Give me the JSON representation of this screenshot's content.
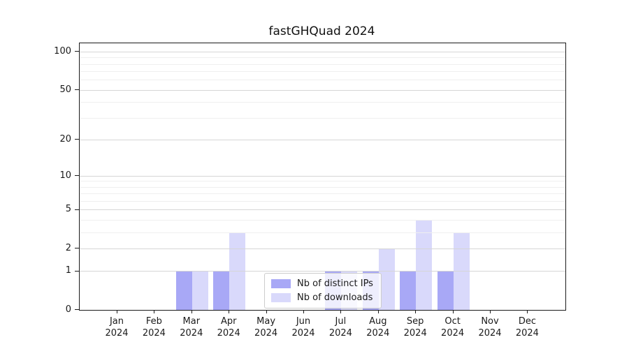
{
  "chart_data": {
    "type": "bar",
    "title": "fastGHQuad 2024",
    "categories": [
      "Jan",
      "Feb",
      "Mar",
      "Apr",
      "May",
      "Jun",
      "Jul",
      "Aug",
      "Sep",
      "Oct",
      "Nov",
      "Dec"
    ],
    "x_tick_second_line": "2024",
    "series": [
      {
        "name": "Nb of distinct IPs",
        "color": "rgba(102,102,240,0.57)",
        "values": [
          0,
          0,
          1,
          1,
          0,
          0,
          1,
          1,
          1,
          1,
          0,
          0
        ]
      },
      {
        "name": "Nb of downloads",
        "color": "rgba(102,102,240,0.25)",
        "values": [
          0,
          0,
          1,
          3,
          0,
          0,
          1,
          2,
          4,
          3,
          0,
          0
        ]
      }
    ],
    "y_axis": {
      "scale": "log1p",
      "major_ticks": [
        0,
        1,
        2,
        5,
        10,
        20,
        50,
        100
      ],
      "minor_ticks": [
        3,
        4,
        6,
        7,
        8,
        9,
        30,
        40,
        60,
        70,
        80,
        90
      ],
      "ylim": [
        0,
        117
      ]
    },
    "x_axis": {
      "label_year": "2024"
    },
    "legend": {
      "position": "lower-center",
      "entries": [
        "Nb of distinct IPs",
        "Nb of downloads"
      ]
    },
    "grid": {
      "major_color": "#d6d6d6",
      "minor_color": "#efefef"
    }
  }
}
